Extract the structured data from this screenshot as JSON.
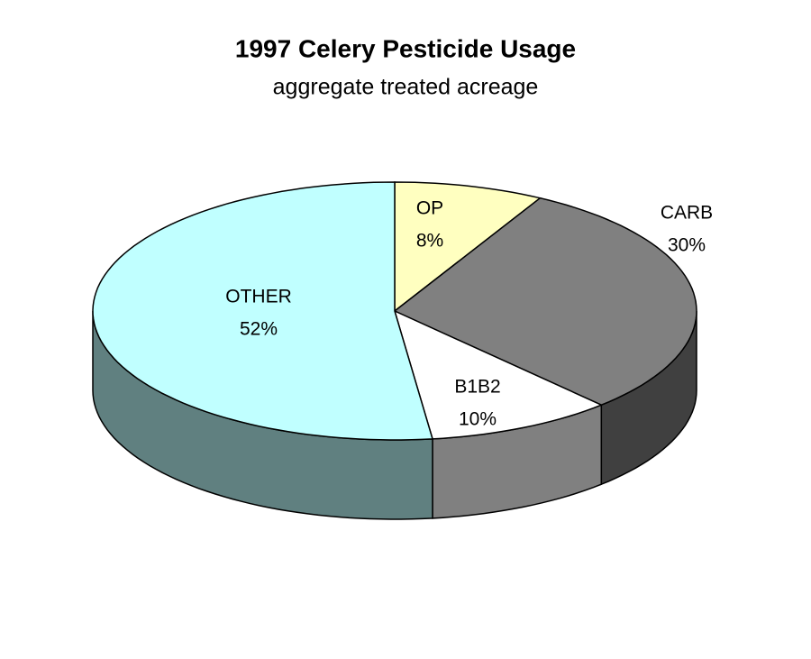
{
  "chart_data": {
    "type": "pie",
    "title": "1997 Celery Pesticide Usage",
    "subtitle": "aggregate treated acreage",
    "categories": [
      "OP",
      "CARB",
      "B1B2",
      "OTHER"
    ],
    "values": [
      8,
      30,
      10,
      52
    ],
    "value_labels": [
      "8%",
      "30%",
      "10%",
      "52%"
    ],
    "colors": [
      "#ffffc0",
      "#808080",
      "#ffffff",
      "#c0ffff"
    ]
  }
}
